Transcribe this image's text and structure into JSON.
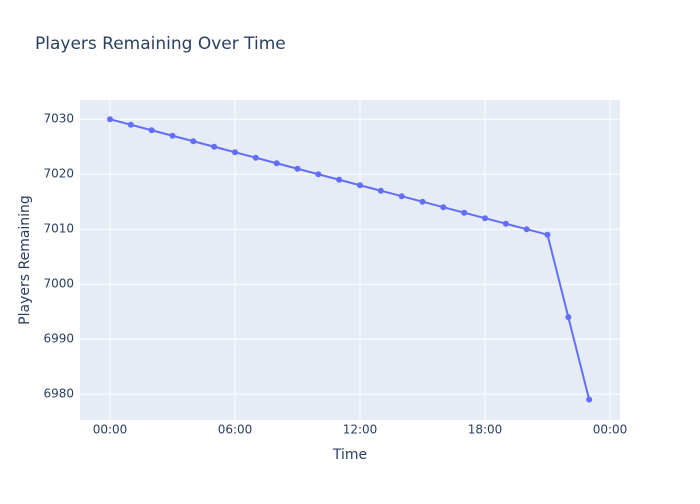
{
  "chart_data": {
    "type": "line",
    "title": "Players Remaining Over Time",
    "x_label": "Time",
    "y_label": "Players Remaining",
    "x": [
      0,
      1,
      2,
      3,
      4,
      5,
      6,
      7,
      8,
      9,
      10,
      11,
      12,
      13,
      14,
      15,
      16,
      17,
      18,
      19,
      20,
      21,
      22,
      23
    ],
    "series": [
      {
        "name": "Players Remaining",
        "color": "#636efa",
        "values": [
          7030,
          7029,
          7028,
          7027,
          7026,
          7025,
          7024,
          7023,
          7022,
          7021,
          7020,
          7019,
          7018,
          7017,
          7016,
          7015,
          7014,
          7013,
          7012,
          7011,
          7010,
          7009,
          6994,
          6979
        ]
      }
    ],
    "xlim": [
      -1.44,
      24.48
    ],
    "xticks": [
      {
        "value": 0,
        "label": "00:00"
      },
      {
        "value": 6,
        "label": "06:00"
      },
      {
        "value": 12,
        "label": "12:00"
      },
      {
        "value": 18,
        "label": "18:00"
      },
      {
        "value": 24,
        "label": "00:00"
      }
    ],
    "ylim": [
      6975.3,
      7033.5
    ],
    "yticks": [
      6980,
      6990,
      7000,
      7010,
      7020,
      7030
    ],
    "grid": true
  }
}
